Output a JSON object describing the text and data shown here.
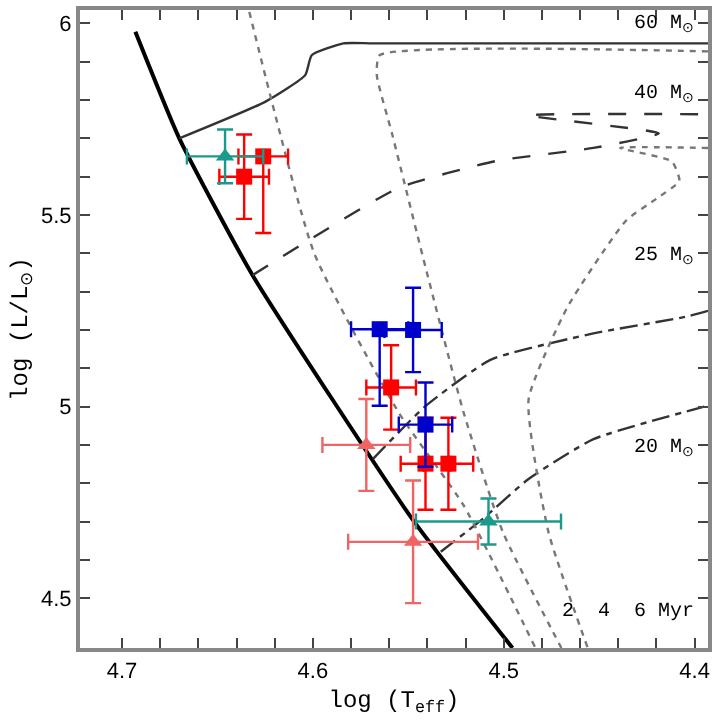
{
  "chart_data": {
    "type": "line",
    "xlabel": "log (T$_{eff}$)",
    "ylabel": "log (L/L$_{⊙}$)",
    "xlim": [
      4.722,
      4.393
    ],
    "ylim": [
      4.37,
      6.035
    ],
    "xticks": [
      4.7,
      4.6,
      4.5,
      4.4,
      {
        "value": 4.68,
        "label": null
      },
      {
        "value": 4.66,
        "label": null
      },
      {
        "value": 4.64,
        "label": null
      },
      {
        "value": 4.62,
        "label": null
      },
      {
        "value": 4.58,
        "label": null
      },
      {
        "value": 4.56,
        "label": null
      },
      {
        "value": 4.54,
        "label": null
      },
      {
        "value": 4.52,
        "label": null
      },
      {
        "value": 4.48,
        "label": null
      },
      {
        "value": 4.46,
        "label": null
      },
      {
        "value": 4.44,
        "label": null
      },
      {
        "value": 4.42,
        "label": null
      }
    ],
    "yticks": [
      4.5,
      5,
      5.5,
      6,
      {
        "value": 4.6,
        "label": null
      },
      {
        "value": 4.7,
        "label": null
      },
      {
        "value": 4.8,
        "label": null
      },
      {
        "value": 4.9,
        "label": null
      },
      {
        "value": 5.1,
        "label": null
      },
      {
        "value": 5.2,
        "label": null
      },
      {
        "value": 5.3,
        "label": null
      },
      {
        "value": 5.4,
        "label": null
      },
      {
        "value": 5.6,
        "label": null
      },
      {
        "value": 5.7,
        "label": null
      },
      {
        "value": 5.8,
        "label": null
      },
      {
        "value": 5.9,
        "label": null
      }
    ],
    "series": [
      {
        "line_style": "solid",
        "color": "#000000",
        "x": [
          4.693,
          4.67,
          4.6316,
          4.548,
          4.4954
        ],
        "values": [
          5.978,
          5.7,
          5.343,
          4.707,
          4.37
        ]
      },
      {
        "line_style": "solid",
        "color": "#333333",
        "x": [
          4.67,
          4.6248,
          4.604,
          4.6006,
          4.584,
          4.5686,
          4.393
        ],
        "values": [
          5.7,
          5.796,
          5.865,
          5.917,
          5.948,
          5.948,
          5.948
        ]
      },
      {
        "line_style": "dashed",
        "color": "#333333",
        "x": [
          4.6316,
          4.6026,
          4.555,
          4.504,
          4.453,
          4.4188,
          4.487,
          4.393
        ],
        "values": [
          5.343,
          5.433,
          5.571,
          5.641,
          5.675,
          5.713,
          5.76,
          5.763
        ]
      },
      {
        "line_style": "dashdot",
        "color": "#333333",
        "x": [
          4.5686,
          4.5413,
          4.507,
          4.453,
          4.405,
          4.393
        ],
        "values": [
          4.863,
          5.0,
          5.122,
          5.191,
          5.234,
          5.25
        ]
      },
      {
        "line_style": "dashdot",
        "color": "#333333",
        "x": [
          4.533,
          4.511,
          4.487,
          4.453,
          4.395
        ],
        "values": [
          4.621,
          4.707,
          4.811,
          4.915,
          5.0
        ]
      },
      {
        "line_style": "dotted",
        "color": "#777777",
        "x": [
          4.6333,
          4.5992,
          4.555,
          4.521,
          4.4834
        ],
        "values": [
          6.03,
          5.399,
          4.984,
          4.742,
          4.37
        ]
      },
      {
        "line_style": "dotted",
        "color": "#777777",
        "x": [
          4.393,
          4.565,
          4.5665,
          4.5584,
          4.541,
          4.521,
          4.5005,
          4.4698
        ],
        "values": [
          5.927,
          5.917,
          5.865,
          5.71,
          5.364,
          4.984,
          4.673,
          4.37
        ]
      },
      {
        "line_style": "dotted",
        "color": "#777777",
        "x": [
          4.393,
          4.439,
          4.412,
          4.408,
          4.419,
          4.436,
          4.4666,
          4.487,
          4.4766,
          4.456
        ],
        "values": [
          5.675,
          5.675,
          5.64,
          5.589,
          5.546,
          5.485,
          5.26,
          5.018,
          4.673,
          4.37
        ]
      },
      {
        "type": "scatter",
        "marker": "square",
        "color": "#ff0000",
        "x": [
          4.636,
          4.626,
          4.559,
          4.541,
          4.529
        ],
        "values": [
          5.6,
          5.653,
          5.05,
          4.851,
          4.851
        ],
        "errors": [
          0.11,
          [
            5.453,
            5.653
          ],
          0.11,
          0.12,
          0.12
        ],
        "xerrors": [
          0.013,
          0.013,
          0.013,
          0.013,
          0.013
        ]
      },
      {
        "type": "scatter",
        "marker": "square",
        "color": "#0000cc",
        "x": [
          4.565,
          4.5475,
          4.541
        ],
        "values": [
          5.202,
          5.2,
          4.953
        ],
        "errors": [
          [
            5.002,
            5.202
          ],
          0.11,
          0.11
        ],
        "xerrors": [
          0.015,
          0.015,
          0.014
        ]
      },
      {
        "type": "scatter",
        "marker": "triangle",
        "color": "#f06464",
        "x": [
          4.572,
          4.5475
        ],
        "values": [
          4.9,
          4.647
        ],
        "errors": [
          0.12,
          0.16
        ],
        "xerrors": [
          0.023,
          0.034
        ]
      },
      {
        "type": "scatter",
        "marker": "triangle",
        "color": "#1a9a8a",
        "x": [
          4.646,
          4.508
        ],
        "values": [
          5.653,
          4.7
        ],
        "errors": [
          0.07,
          0.06
        ],
        "xerrors": [
          0.02,
          0.038
        ]
      }
    ],
    "annotations": [
      "60 M$_{⊙}$",
      "40 M$_{⊙}$",
      "25 M$_{⊙}$",
      "20 M$_{⊙}$",
      "2  4  6 Myr"
    ]
  }
}
